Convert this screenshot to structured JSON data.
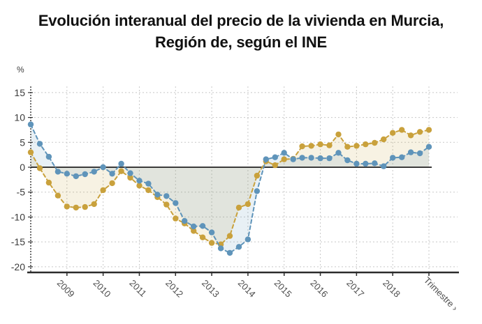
{
  "title": {
    "line1": "Evolución interanual del precio de la vivienda en Murcia,",
    "line2": "Región de, según el INE"
  },
  "y_axis": {
    "unit_label": "%",
    "ticks": [
      15,
      10,
      5,
      0,
      -5,
      -10,
      -15,
      -20
    ],
    "min": -20,
    "max": 15
  },
  "x_axis": {
    "year_labels": [
      "2009",
      "2010",
      "2011",
      "2012",
      "2013",
      "2014",
      "2015",
      "2016",
      "2017",
      "2018"
    ],
    "axis_title": "Trimestre ›"
  },
  "colors": {
    "blue_series": "#5f94ba",
    "ochre_series": "#c9a13c",
    "blue_fill": "rgba(95,148,186,0.14)",
    "ochre_fill": "rgba(201,161,60,0.14)",
    "gridline": "#c8c8c8",
    "axis": "#2b2b2b",
    "zero_line": "#3a3a3a",
    "tick_label": "#4d4d4d"
  },
  "chart_data": {
    "type": "line",
    "title": "Evolución interanual del precio de la vivienda en Murcia, Región de, según el INE",
    "ylabel": "%",
    "xlabel": "Trimestre",
    "ylim": [
      -20,
      15
    ],
    "grid": true,
    "legend_position": "none",
    "frequency": "quarterly",
    "x_start": "2008-T1",
    "x_end": "2019-T1",
    "quarters": [
      "2008T1",
      "2008T2",
      "2008T3",
      "2008T4",
      "2009T1",
      "2009T2",
      "2009T3",
      "2009T4",
      "2010T1",
      "2010T2",
      "2010T3",
      "2010T4",
      "2011T1",
      "2011T2",
      "2011T3",
      "2011T4",
      "2012T1",
      "2012T2",
      "2012T3",
      "2012T4",
      "2013T1",
      "2013T2",
      "2013T3",
      "2013T4",
      "2014T1",
      "2014T2",
      "2014T3",
      "2014T4",
      "2015T1",
      "2015T2",
      "2015T3",
      "2015T4",
      "2016T1",
      "2016T2",
      "2016T3",
      "2016T4",
      "2017T1",
      "2017T2",
      "2017T3",
      "2017T4",
      "2018T1",
      "2018T2",
      "2018T3",
      "2018T4",
      "2019T1"
    ],
    "series": [
      {
        "name": "serie_ocre",
        "color": "#c9a13c",
        "values": [
          3.0,
          -0.2,
          -3.1,
          -5.7,
          -7.9,
          -8.1,
          -8.0,
          -7.4,
          -4.6,
          -3.2,
          -0.8,
          -2.1,
          -3.7,
          -4.6,
          -6.0,
          -7.5,
          -10.3,
          -11.3,
          -12.8,
          -14.1,
          -15.2,
          -15.5,
          -13.8,
          -8.1,
          -7.4,
          -1.7,
          1.2,
          0.4,
          1.6,
          1.7,
          4.2,
          4.3,
          4.6,
          4.4,
          6.6,
          4.1,
          4.3,
          4.6,
          4.9,
          5.6,
          6.9,
          7.5,
          6.4,
          7.1,
          7.5
        ]
      },
      {
        "name": "serie_azul",
        "color": "#5f94ba",
        "values": [
          8.6,
          4.7,
          2.1,
          -0.9,
          -1.3,
          -1.8,
          -1.4,
          -0.9,
          0.0,
          -1.3,
          0.7,
          -1.2,
          -2.7,
          -3.3,
          -5.5,
          -5.8,
          -7.2,
          -10.8,
          -11.9,
          -11.8,
          -13.1,
          -16.3,
          -17.2,
          -16.0,
          -14.5,
          -4.8,
          1.6,
          2.0,
          2.9,
          1.6,
          1.9,
          1.9,
          1.8,
          1.8,
          2.9,
          1.4,
          0.7,
          0.7,
          0.8,
          0.2,
          1.9,
          2.0,
          3.0,
          2.8,
          4.1
        ]
      }
    ]
  }
}
